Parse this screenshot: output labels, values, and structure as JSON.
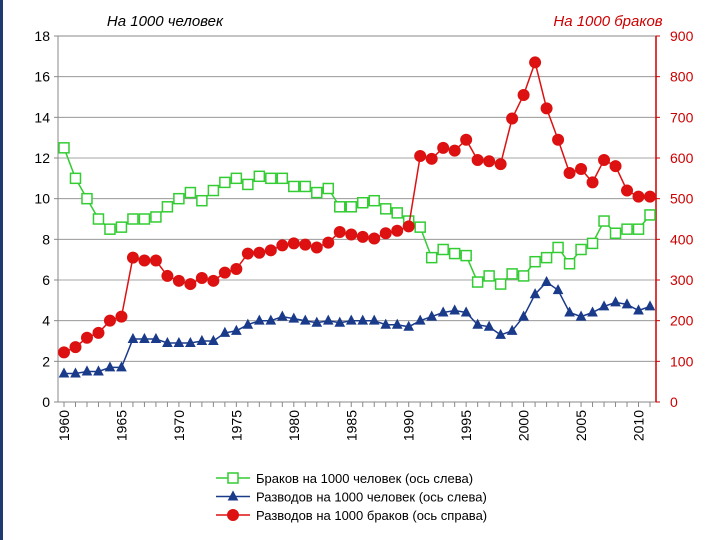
{
  "colors": {
    "marriages": "#33cc33",
    "divorces_per_people": "#1a3a8a",
    "divorces_per_marriages": "#dd1111",
    "left_axis": "#000000",
    "right_axis": "#cc0000",
    "grid": "#888888"
  },
  "chart_data": {
    "type": "line",
    "title_left": "На 1000 человек",
    "title_right": "На 1000 браков",
    "x": [
      1960,
      1961,
      1962,
      1963,
      1964,
      1965,
      1966,
      1967,
      1968,
      1969,
      1970,
      1971,
      1972,
      1973,
      1974,
      1975,
      1976,
      1977,
      1978,
      1979,
      1980,
      1981,
      1982,
      1983,
      1984,
      1985,
      1986,
      1987,
      1988,
      1989,
      1990,
      1991,
      1992,
      1993,
      1994,
      1995,
      1996,
      1997,
      1998,
      1999,
      2000,
      2001,
      2002,
      2003,
      2004,
      2005,
      2006,
      2007,
      2008,
      2009,
      2010,
      2011
    ],
    "xlim": [
      1960,
      2011
    ],
    "xticks": [
      "1960",
      "1965",
      "1970",
      "1975",
      "1980",
      "1985",
      "1990",
      "1995",
      "2000",
      "2005",
      "2010"
    ],
    "ylim_left": [
      0,
      18
    ],
    "yticks_left": [
      "0",
      "2",
      "4",
      "6",
      "8",
      "10",
      "12",
      "14",
      "16",
      "18"
    ],
    "ylim_right": [
      0,
      900
    ],
    "yticks_right": [
      "0",
      "100",
      "200",
      "300",
      "400",
      "500",
      "600",
      "700",
      "800",
      "900"
    ],
    "series": [
      {
        "name": "Браков на 1000 человек (ось слева)",
        "axis": "left",
        "marker": "square",
        "values": [
          12.5,
          11.0,
          10.0,
          9.0,
          8.5,
          8.6,
          9.0,
          9.0,
          9.1,
          9.6,
          10.0,
          10.3,
          9.9,
          10.4,
          10.8,
          11.0,
          10.7,
          11.1,
          11.0,
          11.0,
          10.6,
          10.6,
          10.3,
          10.5,
          9.6,
          9.6,
          9.8,
          9.9,
          9.5,
          9.3,
          8.9,
          8.6,
          7.1,
          7.5,
          7.3,
          7.2,
          5.9,
          6.2,
          5.8,
          6.3,
          6.2,
          6.9,
          7.1,
          7.6,
          6.8,
          7.5,
          7.8,
          8.9,
          8.3,
          8.5,
          8.5,
          9.2
        ]
      },
      {
        "name": "Разводов на 1000 человек (ось слева)",
        "axis": "left",
        "marker": "triangle",
        "values": [
          1.4,
          1.4,
          1.5,
          1.5,
          1.7,
          1.7,
          3.1,
          3.1,
          3.1,
          2.9,
          2.9,
          2.9,
          3.0,
          3.0,
          3.4,
          3.5,
          3.8,
          4.0,
          4.0,
          4.2,
          4.1,
          4.0,
          3.9,
          4.0,
          3.9,
          4.0,
          4.0,
          4.0,
          3.8,
          3.8,
          3.7,
          4.0,
          4.2,
          4.4,
          4.5,
          4.4,
          3.8,
          3.7,
          3.3,
          3.5,
          4.2,
          5.3,
          5.9,
          5.5,
          4.4,
          4.2,
          4.4,
          4.7,
          4.9,
          4.8,
          4.5,
          4.7
        ]
      },
      {
        "name": "Разводов на 1000 браков (ось справа)",
        "axis": "right",
        "marker": "circle",
        "values": [
          122,
          135,
          158,
          170,
          200,
          210,
          355,
          348,
          348,
          310,
          298,
          290,
          305,
          298,
          318,
          327,
          365,
          367,
          373,
          385,
          390,
          387,
          380,
          392,
          418,
          412,
          406,
          402,
          415,
          421,
          432,
          605,
          598,
          625,
          618,
          645,
          595,
          592,
          585,
          697,
          755,
          835,
          722,
          645,
          563,
          573,
          540,
          595,
          580,
          520,
          505,
          505
        ]
      }
    ]
  }
}
